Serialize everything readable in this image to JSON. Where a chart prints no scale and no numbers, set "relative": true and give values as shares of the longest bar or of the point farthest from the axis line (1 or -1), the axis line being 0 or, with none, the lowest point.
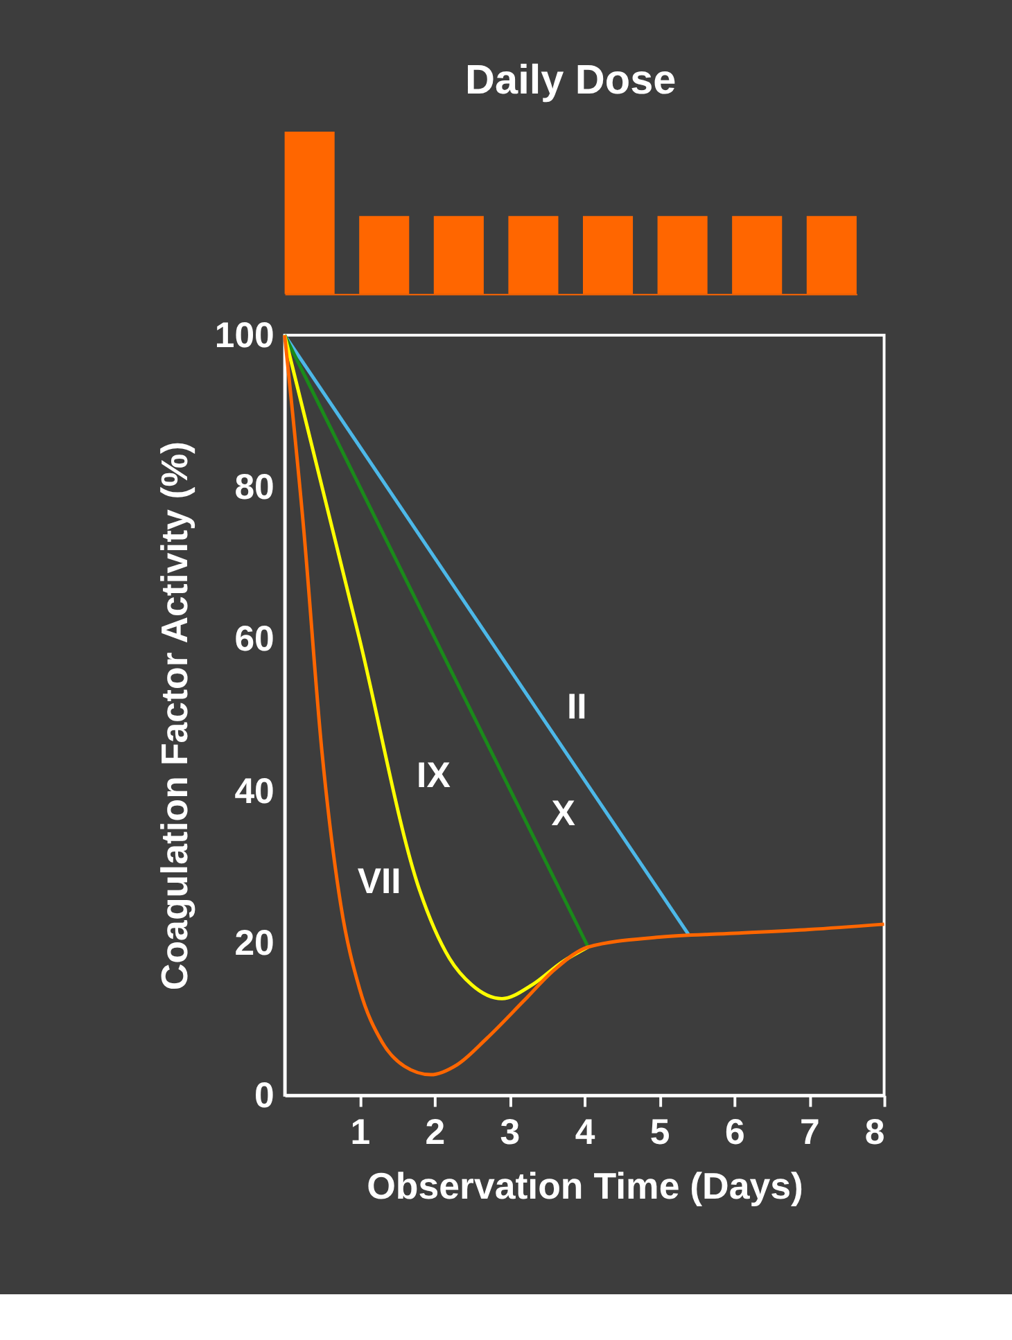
{
  "chart_data": [
    {
      "type": "bar",
      "title": "Daily Dose",
      "categories": [
        null,
        null,
        null,
        null,
        null,
        null,
        null,
        null
      ],
      "values": [
        1,
        0.48,
        0.48,
        0.48,
        0.48,
        0.48,
        0.48,
        0.48
      ],
      "color": "#ff6600",
      "relative": true
    },
    {
      "type": "line",
      "xlabel": "Observation Time (Days)",
      "ylabel": "Coagulation Factor Activity (%)",
      "xlim": [
        0,
        8
      ],
      "xticks": [
        1,
        2,
        3,
        4,
        5,
        6,
        7,
        8
      ],
      "ylim": [
        0,
        100
      ],
      "yticks": [
        0,
        20,
        40,
        60,
        80,
        100
      ],
      "grid": false,
      "marker": "none",
      "line_style": "solid",
      "series": [
        {
          "name": "II",
          "color": "#4db8e8",
          "x": [
            0,
            5.4
          ],
          "values": [
            100,
            21
          ]
        },
        {
          "name": "X",
          "color": "#1a8a1a",
          "x": [
            0,
            4.05
          ],
          "values": [
            100,
            19.5
          ]
        },
        {
          "name": "IX",
          "color": "#ffff00",
          "x": [
            0,
            1,
            1.8,
            2.2,
            2.5,
            2.9,
            3.3,
            3.7,
            4.05
          ],
          "values": [
            100,
            60,
            27,
            18,
            14.5,
            12.7,
            14.5,
            17.5,
            19.5
          ]
        },
        {
          "name": "VII",
          "color": "#ff6600",
          "x": [
            0,
            0.25,
            0.5,
            0.75,
            1,
            1.3,
            1.6,
            1.95,
            2.3,
            2.7,
            3.2,
            3.6,
            4.05,
            5,
            6,
            7,
            8
          ],
          "values": [
            100,
            75,
            45,
            25,
            14,
            7,
            3.8,
            2.7,
            4,
            7.5,
            12.5,
            16.5,
            19.5,
            20.8,
            21.3,
            21.8,
            22.5
          ]
        }
      ]
    }
  ]
}
